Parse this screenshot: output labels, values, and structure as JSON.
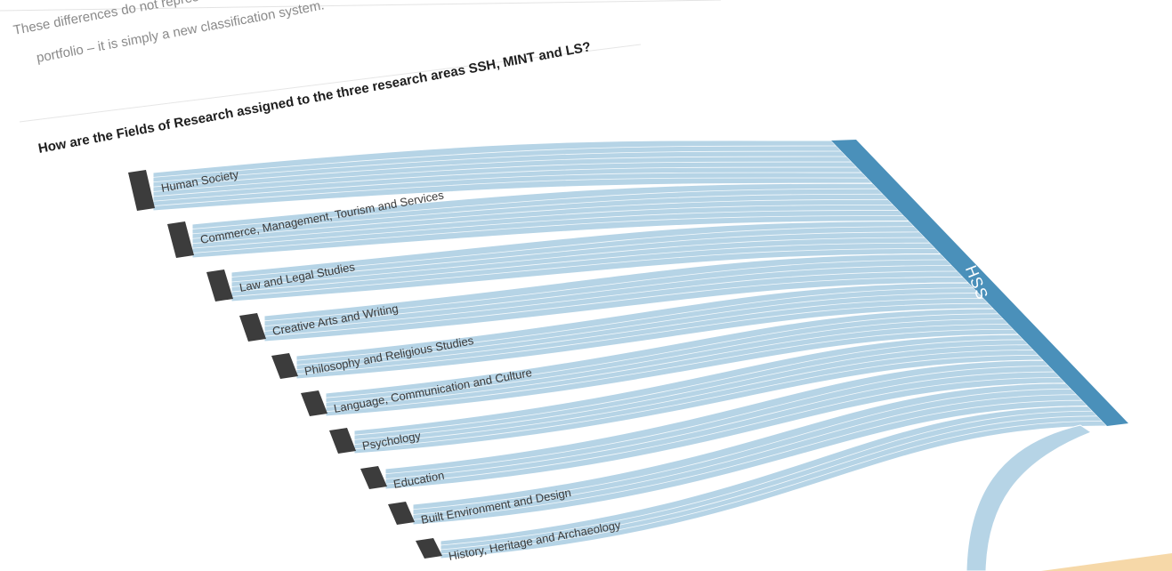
{
  "intro": {
    "line1": "These differences do not represent",
    "line2": "portfolio – it is simply a new classification system."
  },
  "question": "How are the Fields of Research assigned to the three research areas SSH, MINT and LS?",
  "sankey": {
    "link_color": "#b6d4e6",
    "source_node_color": "#3c3c3c",
    "target": {
      "label": "HSS",
      "color": "#4a90ba"
    },
    "sources": [
      {
        "label": "Human Society"
      },
      {
        "label": "Commerce, Management, Tourism and Services"
      },
      {
        "label": "Law and Legal Studies"
      },
      {
        "label": "Creative Arts and Writing"
      },
      {
        "label": "Philosophy and Religious Studies"
      },
      {
        "label": "Language, Communication and Culture"
      },
      {
        "label": "Psychology"
      },
      {
        "label": "Education"
      },
      {
        "label": "Built Environment and Design"
      },
      {
        "label": "History, Heritage and Archaeology"
      }
    ]
  },
  "decor": {
    "accent_corner_color": "#f6d8a8"
  }
}
